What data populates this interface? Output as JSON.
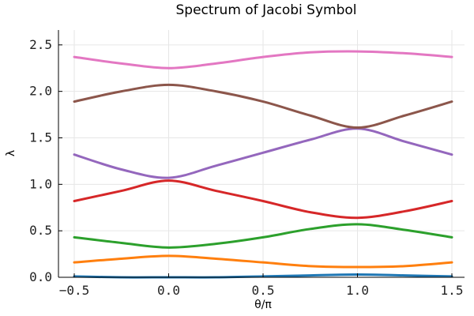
{
  "chart_data": {
    "type": "line",
    "title": "Spectrum of Jacobi Symbol",
    "xlabel": "θ/π",
    "ylabel": "λ",
    "xlim": [
      -0.5,
      1.5
    ],
    "ylim": [
      0,
      2.66
    ],
    "xticks": [
      {
        "value": -0.5,
        "label": "−0.5"
      },
      {
        "value": 0.0,
        "label": "0.0"
      },
      {
        "value": 0.5,
        "label": "0.5"
      },
      {
        "value": 1.0,
        "label": "1.0"
      },
      {
        "value": 1.5,
        "label": "1.5"
      }
    ],
    "yticks": [
      {
        "value": 0.0,
        "label": "0.0"
      },
      {
        "value": 0.5,
        "label": "0.5"
      },
      {
        "value": 1.0,
        "label": "1.0"
      },
      {
        "value": 1.5,
        "label": "1.5"
      },
      {
        "value": 2.0,
        "label": "2.0"
      },
      {
        "value": 2.5,
        "label": "2.5"
      }
    ],
    "grid": true,
    "legend": "none",
    "x": [
      -0.5,
      -0.25,
      0.0,
      0.25,
      0.5,
      0.75,
      1.0,
      1.25,
      1.5
    ],
    "series": [
      {
        "color": "#1f77b4",
        "values": [
          0.01,
          0.0,
          0.0,
          0.0,
          0.01,
          0.02,
          0.03,
          0.02,
          0.01
        ]
      },
      {
        "color": "#ff7f0e",
        "values": [
          0.16,
          0.2,
          0.23,
          0.2,
          0.16,
          0.12,
          0.11,
          0.12,
          0.16
        ]
      },
      {
        "color": "#2ca02c",
        "values": [
          0.43,
          0.37,
          0.32,
          0.36,
          0.43,
          0.52,
          0.57,
          0.51,
          0.43
        ]
      },
      {
        "color": "#d62728",
        "values": [
          0.82,
          0.93,
          1.04,
          0.93,
          0.82,
          0.7,
          0.64,
          0.71,
          0.82
        ]
      },
      {
        "color": "#9467bd",
        "values": [
          1.32,
          1.16,
          1.07,
          1.2,
          1.34,
          1.48,
          1.6,
          1.46,
          1.32
        ]
      },
      {
        "color": "#8c564b",
        "values": [
          1.89,
          2.0,
          2.07,
          2.0,
          1.89,
          1.74,
          1.61,
          1.74,
          1.89
        ]
      },
      {
        "color": "#e377c2",
        "values": [
          2.37,
          2.3,
          2.25,
          2.3,
          2.37,
          2.42,
          2.43,
          2.41,
          2.37
        ]
      }
    ]
  }
}
